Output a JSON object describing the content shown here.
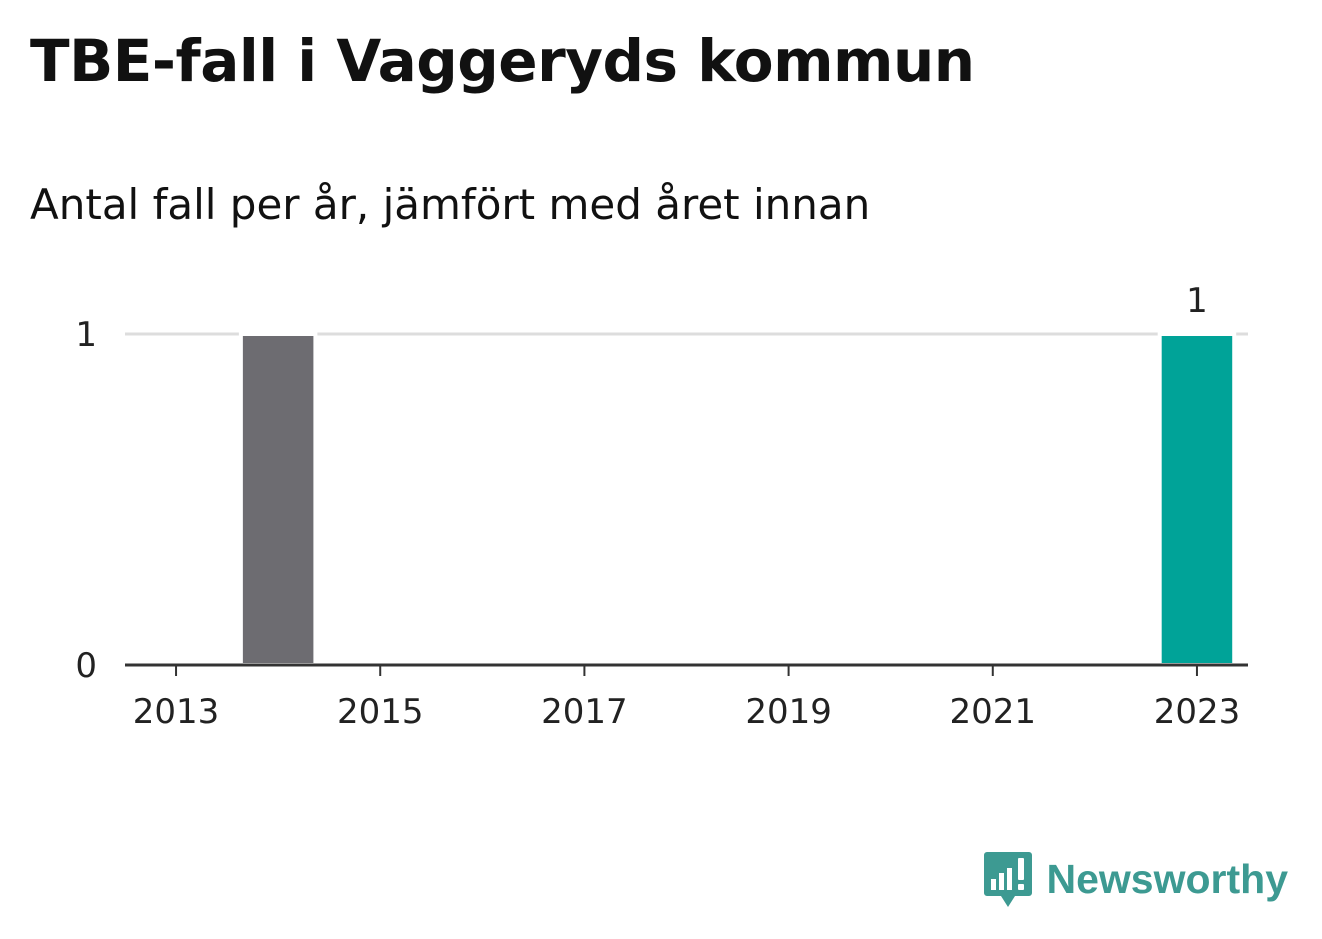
{
  "title": "TBE-fall i Vaggeryds kommun",
  "subtitle": "Antal fall per år, jämfört med året innan",
  "brand": {
    "name": "Newsworthy",
    "logo_icon": "bar-chart-speech-bubble-icon",
    "color": "#3d9a92"
  },
  "chart_data": {
    "type": "bar",
    "x": [
      2013,
      2014,
      2015,
      2016,
      2017,
      2018,
      2019,
      2020,
      2021,
      2022,
      2023
    ],
    "values": [
      0,
      1,
      0,
      0,
      0,
      0,
      0,
      0,
      0,
      0,
      1
    ],
    "bar_colors": [
      "#6d6c71",
      "#6d6c71",
      "#6d6c71",
      "#6d6c71",
      "#6d6c71",
      "#6d6c71",
      "#6d6c71",
      "#6d6c71",
      "#6d6c71",
      "#6d6c71",
      "#00a398"
    ],
    "highlight_color": "#00a398",
    "base_color": "#6d6c71",
    "x_ticks": [
      "2013",
      "2015",
      "2017",
      "2019",
      "2021",
      "2023"
    ],
    "y_ticks": [
      "0",
      "1"
    ],
    "ylim": [
      0,
      1
    ],
    "grid": true,
    "data_labels": [
      {
        "x": 2023,
        "label": "1"
      }
    ],
    "xlabel": "",
    "ylabel": ""
  }
}
